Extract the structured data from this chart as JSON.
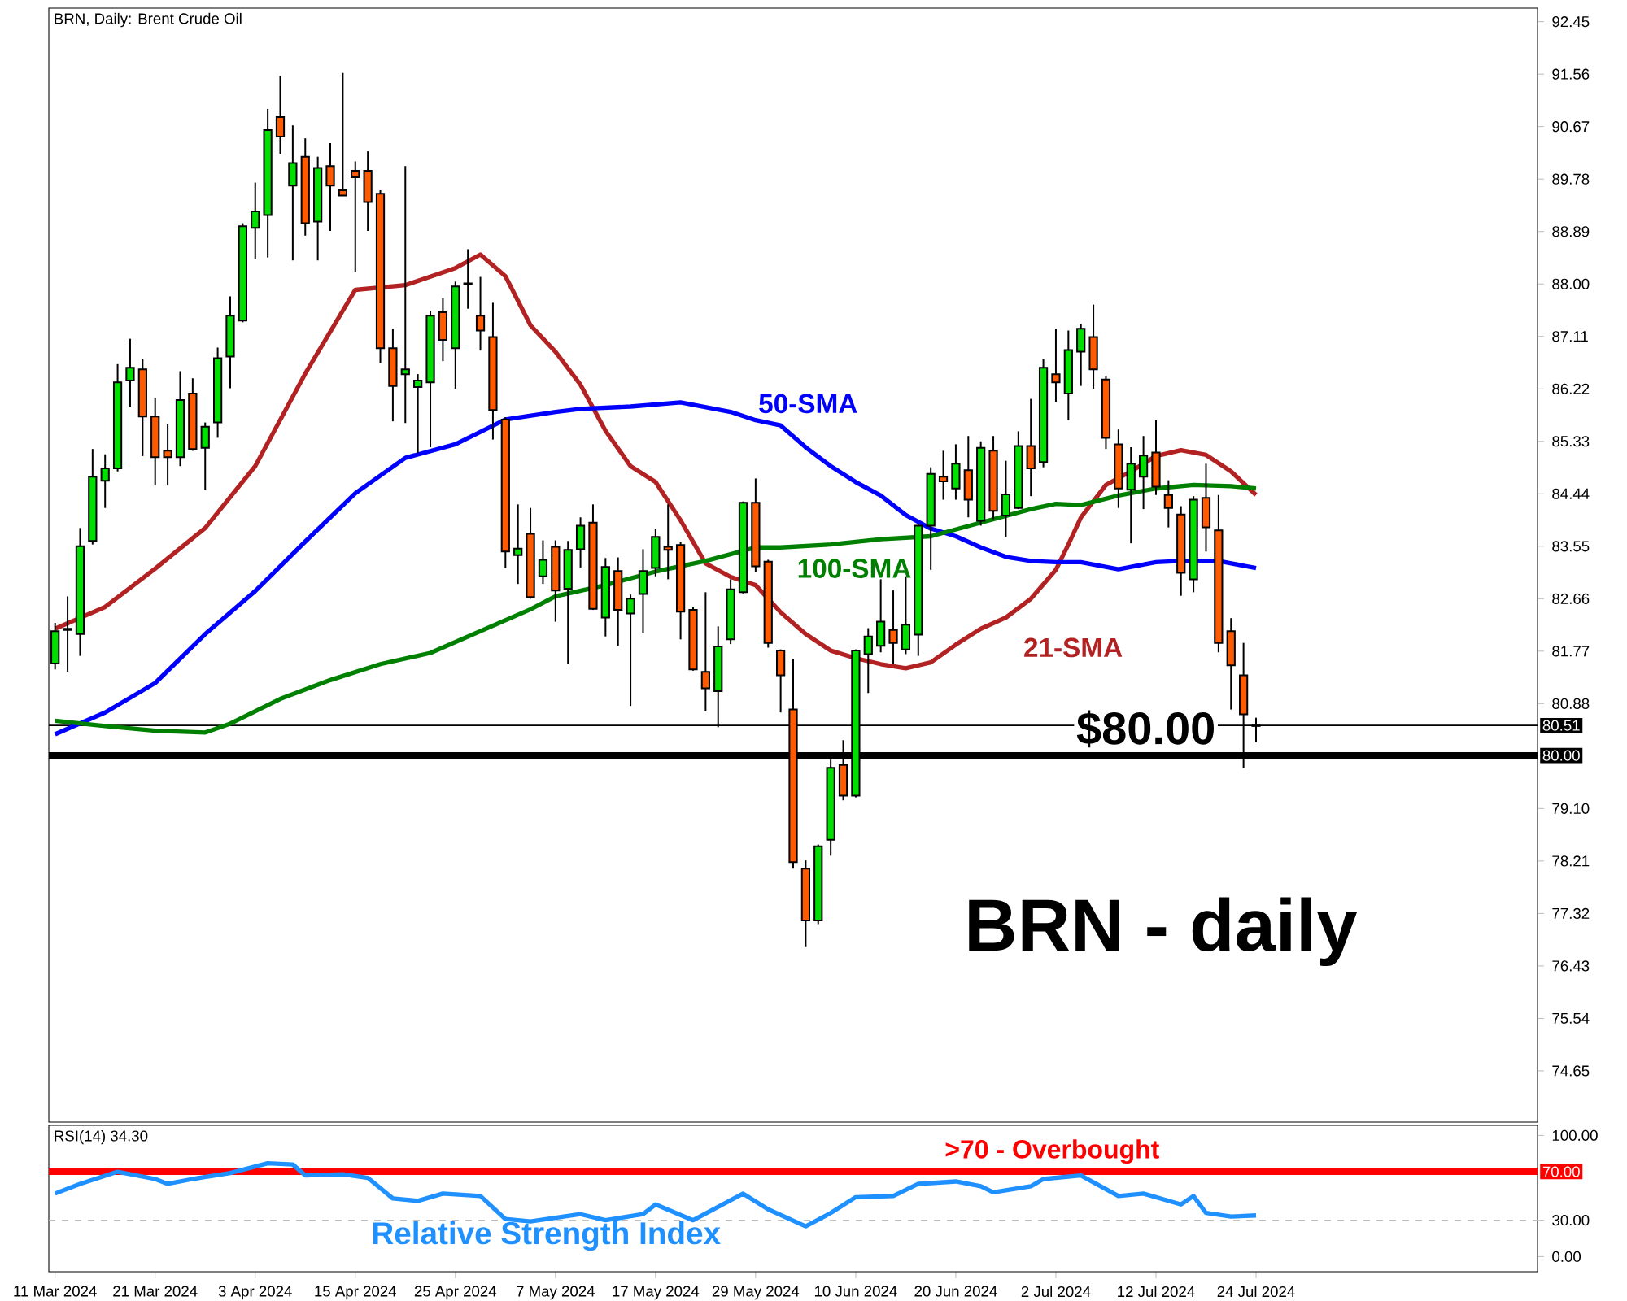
{
  "chart_data": [
    {
      "type": "candlestick",
      "title": "BRN, Daily:  Brent Crude Oil",
      "categories": [
        null,
        null,
        null,
        null,
        null,
        null,
        null,
        null,
        null,
        null,
        null,
        null,
        null,
        null,
        null,
        null,
        null,
        null,
        null,
        null,
        null,
        null,
        null,
        null,
        null,
        null,
        null,
        null,
        null,
        null,
        null,
        null,
        null,
        null,
        null,
        null,
        null,
        null,
        null,
        null,
        null,
        null,
        null,
        null,
        null,
        null,
        null,
        null,
        null,
        null,
        null,
        null,
        null,
        null,
        null,
        null,
        null,
        null,
        null,
        null,
        null,
        null,
        null,
        null,
        null,
        null,
        null,
        null,
        null,
        null,
        null,
        null,
        null,
        null,
        null,
        null,
        null,
        null,
        null,
        null,
        null,
        null,
        null,
        null,
        null,
        null,
        null,
        null,
        null,
        null,
        null,
        null,
        null,
        null,
        null,
        null,
        null,
        null,
        null,
        null,
        null,
        null,
        null,
        null,
        null,
        null,
        null,
        null,
        null,
        null,
        null,
        null,
        null,
        null,
        null,
        null,
        null,
        null,
        null
      ],
      "ohlc": [
        [
          81.56,
          82.25,
          81.46,
          82.11
        ],
        [
          82.13,
          82.7,
          81.42,
          82.15
        ],
        [
          82.06,
          83.86,
          81.69,
          83.55
        ],
        [
          83.64,
          85.2,
          83.58,
          84.73
        ],
        [
          84.66,
          85.11,
          84.2,
          84.87
        ],
        [
          84.87,
          86.64,
          84.82,
          86.33
        ],
        [
          86.36,
          87.07,
          85.92,
          86.58
        ],
        [
          86.55,
          86.72,
          85.08,
          85.75
        ],
        [
          85.75,
          86.06,
          84.58,
          85.06
        ],
        [
          85.17,
          85.62,
          84.58,
          85.06
        ],
        [
          85.06,
          86.52,
          84.91,
          86.03
        ],
        [
          86.14,
          86.4,
          85.17,
          85.2
        ],
        [
          85.22,
          85.65,
          84.5,
          85.58
        ],
        [
          85.65,
          86.92,
          85.39,
          86.74
        ],
        [
          86.77,
          87.79,
          86.23,
          87.46
        ],
        [
          87.38,
          89.03,
          87.35,
          88.98
        ],
        [
          88.95,
          89.72,
          88.42,
          89.23
        ],
        [
          89.17,
          90.97,
          88.45,
          90.61
        ],
        [
          90.83,
          91.53,
          90.21,
          90.5
        ],
        [
          89.67,
          90.69,
          88.4,
          90.05
        ],
        [
          90.16,
          90.47,
          88.82,
          89.03
        ],
        [
          89.06,
          90.16,
          88.4,
          89.97
        ],
        [
          90.0,
          90.39,
          88.9,
          89.67
        ],
        [
          89.59,
          91.58,
          89.5,
          89.5
        ],
        [
          89.92,
          90.08,
          88.21,
          89.81
        ],
        [
          89.92,
          90.25,
          88.9,
          89.39
        ],
        [
          89.53,
          89.59,
          86.66,
          86.91
        ],
        [
          86.91,
          87.24,
          85.67,
          86.27
        ],
        [
          86.47,
          90.0,
          85.64,
          86.55
        ],
        [
          86.25,
          86.47,
          85.13,
          86.36
        ],
        [
          86.33,
          87.54,
          85.23,
          87.46
        ],
        [
          87.52,
          87.76,
          86.69,
          87.05
        ],
        [
          86.91,
          88.04,
          86.22,
          87.96
        ],
        [
          88.0,
          88.59,
          87.58,
          88.01
        ],
        [
          87.46,
          88.12,
          86.87,
          87.21
        ],
        [
          87.1,
          87.68,
          85.36,
          85.86
        ],
        [
          85.7,
          85.74,
          83.18,
          83.46
        ],
        [
          83.4,
          84.26,
          82.91,
          83.51
        ],
        [
          83.76,
          84.2,
          82.66,
          82.69
        ],
        [
          83.04,
          83.65,
          82.91,
          83.32
        ],
        [
          83.54,
          83.65,
          82.27,
          82.8
        ],
        [
          82.83,
          83.64,
          81.55,
          83.49
        ],
        [
          83.5,
          84.04,
          83.19,
          83.9
        ],
        [
          83.95,
          84.26,
          82.47,
          82.49
        ],
        [
          82.34,
          83.35,
          82.02,
          83.2
        ],
        [
          83.13,
          83.36,
          81.86,
          82.47
        ],
        [
          82.41,
          82.73,
          80.84,
          82.66
        ],
        [
          82.74,
          83.5,
          82.08,
          83.13
        ],
        [
          83.18,
          83.84,
          83.04,
          83.71
        ],
        [
          83.54,
          84.26,
          82.99,
          83.49
        ],
        [
          83.57,
          83.62,
          81.97,
          82.44
        ],
        [
          82.47,
          82.52,
          81.44,
          81.46
        ],
        [
          81.42,
          82.77,
          80.75,
          81.14
        ],
        [
          81.09,
          82.19,
          80.48,
          81.85
        ],
        [
          81.97,
          82.99,
          81.89,
          82.82
        ],
        [
          82.77,
          84.31,
          82.75,
          84.29
        ],
        [
          84.29,
          84.7,
          83.12,
          83.21
        ],
        [
          83.29,
          83.32,
          81.83,
          81.91
        ],
        [
          81.78,
          81.8,
          80.73,
          81.36
        ],
        [
          80.78,
          81.64,
          78.08,
          78.19
        ],
        [
          78.08,
          78.22,
          76.75,
          77.2
        ],
        [
          77.2,
          78.49,
          77.14,
          78.46
        ],
        [
          78.57,
          79.93,
          78.3,
          79.79
        ],
        [
          79.84,
          80.26,
          79.24,
          79.32
        ],
        [
          79.32,
          81.8,
          79.29,
          81.78
        ],
        [
          81.72,
          82.16,
          81.06,
          82.02
        ],
        [
          81.86,
          82.99,
          81.75,
          82.27
        ],
        [
          82.13,
          82.8,
          81.55,
          81.91
        ],
        [
          81.8,
          83.04,
          81.72,
          82.22
        ],
        [
          82.05,
          83.93,
          81.69,
          83.9
        ],
        [
          83.9,
          84.89,
          83.15,
          84.78
        ],
        [
          84.73,
          85.17,
          84.34,
          84.65
        ],
        [
          84.53,
          85.28,
          84.34,
          84.95
        ],
        [
          84.84,
          85.42,
          84.04,
          84.34
        ],
        [
          83.98,
          85.33,
          83.9,
          85.22
        ],
        [
          85.17,
          85.42,
          84.01,
          84.15
        ],
        [
          84.07,
          85.0,
          83.71,
          84.43
        ],
        [
          84.2,
          85.5,
          84.18,
          85.25
        ],
        [
          85.25,
          86.05,
          84.4,
          84.87
        ],
        [
          84.98,
          86.72,
          84.89,
          86.58
        ],
        [
          86.47,
          87.24,
          86.0,
          86.33
        ],
        [
          86.14,
          87.21,
          85.69,
          86.88
        ],
        [
          86.85,
          87.32,
          86.27,
          87.24
        ],
        [
          87.1,
          87.65,
          86.22,
          86.55
        ],
        [
          86.38,
          86.44,
          85.2,
          85.39
        ],
        [
          85.28,
          85.53,
          84.2,
          84.53
        ],
        [
          84.51,
          85.23,
          83.6,
          84.95
        ],
        [
          84.73,
          85.42,
          84.18,
          85.09
        ],
        [
          85.14,
          85.69,
          84.42,
          84.56
        ],
        [
          84.42,
          84.67,
          83.87,
          84.2
        ],
        [
          84.09,
          84.23,
          82.71,
          83.1
        ],
        [
          82.99,
          84.4,
          82.77,
          84.34
        ],
        [
          84.37,
          84.95,
          83.46,
          83.87
        ],
        [
          83.82,
          84.42,
          81.75,
          81.91
        ],
        [
          82.11,
          82.33,
          80.78,
          81.53
        ],
        [
          81.36,
          81.91,
          79.79,
          80.7
        ],
        [
          80.5,
          80.64,
          80.23,
          80.51
        ],
        null,
        null,
        null,
        null,
        null,
        null,
        null,
        null,
        null,
        null,
        null,
        null,
        null,
        null,
        null,
        null,
        null,
        null,
        null,
        null,
        null,
        null
      ],
      "series": [
        {
          "name": "21-SMA",
          "type": "line",
          "color": "#b22222",
          "values": [
            82.15,
            null,
            null,
            null,
            82.52,
            null,
            null,
            null,
            83.17,
            null,
            null,
            null,
            83.86,
            null,
            null,
            null,
            84.91,
            null,
            null,
            null,
            86.48,
            null,
            null,
            null,
            87.9,
            null,
            null,
            null,
            87.98,
            null,
            null,
            null,
            88.27,
            null,
            88.5,
            null,
            88.13,
            null,
            87.3,
            null,
            86.85,
            null,
            86.29,
            null,
            85.51,
            null,
            84.91,
            null,
            84.64,
            null,
            83.99,
            null,
            83.26,
            null,
            83.03,
            null,
            82.89,
            null,
            82.43,
            null,
            82.06,
            null,
            81.78,
            null,
            81.65,
            null,
            81.55,
            null,
            81.48,
            null,
            81.58,
            null,
            81.88,
            null,
            82.15,
            null,
            82.34,
            null,
            82.66,
            null,
            83.15,
            83.58,
            84.04,
            null,
            84.59,
            null,
            84.82,
            null,
            85.08,
            null,
            85.18,
            null,
            85.1,
            null,
            84.82,
            null,
            84.42,
            null,
            null,
            null,
            null,
            null,
            null,
            null,
            null,
            null,
            null,
            null,
            null,
            null,
            null,
            null,
            null,
            null,
            null,
            null,
            null,
            null,
            null
          ]
        },
        {
          "name": "50-SMA",
          "type": "line",
          "color": "#0000ff",
          "values": [
            80.36,
            null,
            null,
            null,
            80.73,
            null,
            null,
            null,
            81.23,
            null,
            null,
            null,
            82.06,
            null,
            null,
            null,
            82.79,
            null,
            null,
            null,
            83.63,
            null,
            null,
            null,
            84.45,
            null,
            null,
            null,
            85.05,
            null,
            null,
            null,
            85.28,
            null,
            null,
            null,
            85.7,
            null,
            null,
            null,
            85.83,
            null,
            85.88,
            null,
            null,
            null,
            85.92,
            null,
            null,
            null,
            85.99,
            null,
            null,
            null,
            85.83,
            null,
            85.69,
            null,
            85.6,
            null,
            85.23,
            null,
            84.91,
            null,
            84.64,
            null,
            84.41,
            null,
            84.08,
            null,
            83.85,
            null,
            83.72,
            null,
            83.53,
            null,
            83.37,
            null,
            83.3,
            null,
            83.28,
            null,
            83.28,
            null,
            null,
            83.16,
            null,
            null,
            83.28,
            null,
            83.3,
            null,
            null,
            83.3,
            null,
            null,
            83.18,
            null,
            null,
            null,
            null,
            null,
            null,
            null,
            null,
            null,
            null,
            null,
            null,
            null,
            null,
            null,
            null,
            null,
            null,
            null,
            null,
            null,
            null
          ]
        },
        {
          "name": "100-SMA",
          "type": "line",
          "color": "#008000",
          "values": [
            80.59,
            null,
            null,
            null,
            80.5,
            null,
            null,
            null,
            80.42,
            null,
            null,
            null,
            80.39,
            null,
            80.54,
            null,
            null,
            null,
            80.96,
            null,
            null,
            null,
            81.28,
            null,
            null,
            null,
            81.55,
            null,
            null,
            null,
            81.74,
            null,
            null,
            null,
            82.11,
            null,
            null,
            null,
            82.48,
            null,
            82.7,
            null,
            null,
            null,
            82.89,
            null,
            null,
            null,
            83.12,
            null,
            null,
            null,
            83.3,
            null,
            null,
            null,
            83.53,
            null,
            83.53,
            null,
            null,
            null,
            83.58,
            null,
            null,
            null,
            83.67,
            null,
            null,
            null,
            83.72,
            null,
            null,
            null,
            83.95,
            null,
            null,
            null,
            84.18,
            null,
            84.27,
            null,
            84.25,
            null,
            null,
            84.41,
            null,
            null,
            84.53,
            null,
            null,
            84.59,
            null,
            null,
            84.57,
            null,
            84.53,
            null,
            null,
            null,
            null,
            null,
            null,
            null,
            null,
            null,
            null,
            null,
            null,
            null,
            null,
            null,
            null,
            null,
            null,
            null,
            null,
            null,
            null
          ]
        }
      ],
      "ylim": [
        73.78,
        92.68
      ],
      "yticks": [
        92.45,
        91.56,
        90.67,
        89.78,
        88.89,
        {
          "value": 88,
          "label": "88.00"
        },
        87.11,
        86.22,
        85.33,
        84.44,
        83.55,
        82.66,
        81.77,
        80.88,
        {
          "value": 79.1,
          "label": "79.10"
        },
        78.21,
        77.32,
        76.43,
        75.54,
        74.65
      ],
      "tick_labels": "y",
      "ref_lines": [
        {
          "axis": "y",
          "value": 80.51,
          "label": "80.51",
          "color": "#000000"
        },
        {
          "axis": "y",
          "value": 80,
          "label": "80.00",
          "color": "#000000",
          "line_style": "solid"
        }
      ],
      "annotations": [
        {
          "text": "$80.00",
          "y": 80
        },
        "BRN - daily"
      ]
    },
    {
      "type": "line",
      "title": "RSI(14) 34.30",
      "categories": [
        "11 Mar 2024",
        null,
        null,
        null,
        null,
        null,
        null,
        null,
        "21 Mar 2024",
        null,
        null,
        null,
        null,
        null,
        null,
        null,
        "3 Apr 2024",
        null,
        null,
        null,
        null,
        null,
        null,
        null,
        "15 Apr 2024",
        null,
        null,
        null,
        null,
        null,
        null,
        null,
        "25 Apr 2024",
        null,
        null,
        null,
        null,
        null,
        null,
        null,
        "7 May 2024",
        null,
        null,
        null,
        null,
        null,
        null,
        null,
        "17 May 2024",
        null,
        null,
        null,
        null,
        null,
        null,
        null,
        "29 May 2024",
        null,
        null,
        null,
        null,
        null,
        null,
        null,
        "10 Jun 2024",
        null,
        null,
        null,
        null,
        null,
        null,
        null,
        "20 Jun 2024",
        null,
        null,
        null,
        null,
        null,
        null,
        null,
        "2 Jul 2024",
        null,
        null,
        null,
        null,
        null,
        null,
        null,
        "12 Jul 2024",
        null,
        null,
        null,
        null,
        null,
        null,
        null,
        "24 Jul 2024",
        null,
        null,
        null,
        null,
        null,
        null,
        null,
        null,
        null,
        null,
        null,
        null,
        null,
        null,
        null,
        null,
        null,
        null,
        null,
        null,
        null,
        null
      ],
      "series": [
        {
          "name": "Relative Strength Index",
          "color": "#1e90ff",
          "values": [
            52,
            null,
            60,
            null,
            null,
            70,
            null,
            null,
            64,
            60,
            null,
            64,
            null,
            null,
            69,
            null,
            null,
            77,
            null,
            76,
            67,
            null,
            null,
            68,
            null,
            65,
            null,
            48,
            null,
            46,
            null,
            52,
            null,
            null,
            50,
            null,
            31,
            null,
            29,
            null,
            null,
            null,
            35,
            null,
            30,
            null,
            null,
            35,
            43,
            null,
            null,
            30,
            null,
            null,
            null,
            52,
            null,
            39,
            null,
            null,
            25,
            null,
            36,
            null,
            49,
            null,
            null,
            50,
            null,
            60,
            null,
            null,
            62,
            null,
            58,
            53,
            null,
            null,
            58,
            64,
            null,
            null,
            67,
            null,
            null,
            50,
            null,
            52,
            null,
            null,
            43,
            50,
            36,
            null,
            33,
            null,
            34,
            null,
            null,
            null,
            null,
            null,
            null,
            null,
            null,
            null,
            null,
            null,
            null,
            null,
            null,
            null,
            null,
            null,
            null,
            null,
            null,
            null,
            null
          ]
        }
      ],
      "ylim": [
        -12.5,
        108.3
      ],
      "yticks": [
        {
          "value": 0,
          "label": "0.00"
        },
        {
          "value": 30,
          "label": "30.00"
        },
        {
          "value": 100,
          "label": "100.00"
        }
      ],
      "ref_lines": [
        {
          "axis": "y",
          "value": 70,
          "label": "70.00",
          "color": "#ff0000",
          "line_style": "solid"
        },
        {
          "axis": "y",
          "value": 30,
          "color": "#c0c0c0",
          "line_style": "dashed"
        }
      ],
      "annotations": [
        {
          "text": ">70 - Overbought",
          "y": 70
        }
      ]
    }
  ]
}
